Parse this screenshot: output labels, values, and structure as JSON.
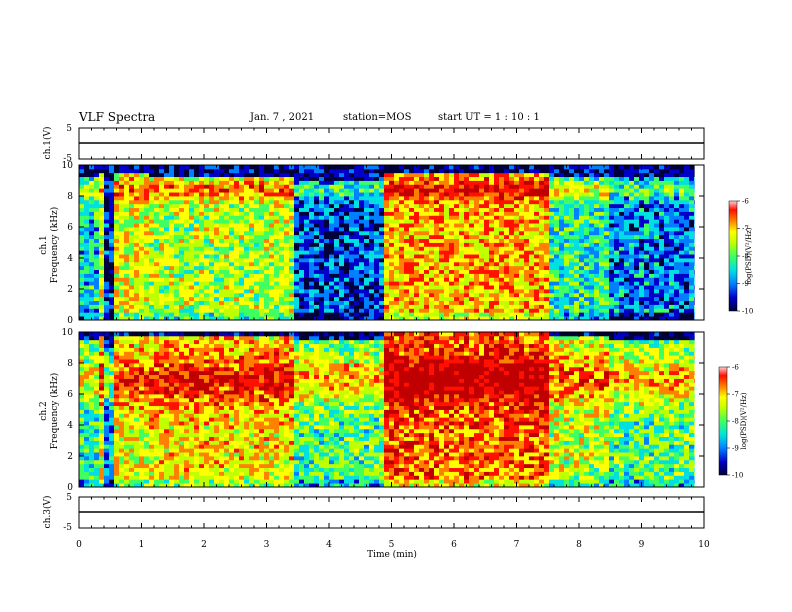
{
  "header": {
    "title": "VLF  Spectra",
    "date": "Jan. 7 , 2021",
    "station": "station=MOS",
    "start": "start  UT  =   1 : 10 : 1"
  },
  "colors": {
    "spectrum_scale": [
      "#00003a",
      "#0000c8",
      "#0080ff",
      "#00e0e0",
      "#40ff60",
      "#c0ff00",
      "#ffff00",
      "#ff8000",
      "#ff1000",
      "#c00000"
    ]
  },
  "chart_data": [
    {
      "type": "line",
      "name": "ch1-waveform",
      "ylabel": "ch.1(V)",
      "ylim": [
        -5,
        5
      ],
      "yticks": [
        "5",
        "-5"
      ],
      "x": [
        0,
        10
      ],
      "y": [
        0,
        0
      ]
    },
    {
      "type": "heatmap",
      "name": "ch1-spectrogram",
      "ylabel": "ch.1\nFrequency (kHz)",
      "xlim": [
        0,
        10
      ],
      "ylim": [
        0,
        10
      ],
      "yticks": [
        "0",
        "2",
        "4",
        "6",
        "8",
        "10"
      ],
      "colorbar": {
        "label": "log(PSD)(V²/Hz)",
        "ticks": [
          "-6",
          "-7",
          "-8",
          "-9",
          "-10"
        ],
        "range": [
          -10,
          -6
        ]
      },
      "segments": [
        {
          "x0": 0.0,
          "x1": 0.3,
          "level": -8.6,
          "top_khz": 9.2
        },
        {
          "x0": 0.3,
          "x1": 0.4,
          "level": -7.8,
          "top_khz": 9.5
        },
        {
          "x0": 0.4,
          "x1": 0.6,
          "level": -9.4,
          "top_khz": 7.0
        },
        {
          "x0": 0.6,
          "x1": 1.15,
          "level": -7.6,
          "top_khz": 9.4
        },
        {
          "x0": 1.15,
          "x1": 3.45,
          "level": -7.8,
          "top_khz": 9.3
        },
        {
          "x0": 3.45,
          "x1": 4.85,
          "level": -9.2,
          "top_khz": 9.0
        },
        {
          "x0": 4.85,
          "x1": 7.5,
          "level": -7.2,
          "top_khz": 9.5
        },
        {
          "x0": 7.5,
          "x1": 8.5,
          "level": -8.4,
          "top_khz": 9.3
        },
        {
          "x0": 8.5,
          "x1": 9.85,
          "level": -9.0,
          "top_khz": 9.2
        }
      ]
    },
    {
      "type": "heatmap",
      "name": "ch2-spectrogram",
      "ylabel": "ch.2\nFrequency (kHz)",
      "xlim": [
        0,
        10
      ],
      "ylim": [
        0,
        10
      ],
      "yticks": [
        "0",
        "2",
        "4",
        "6",
        "8",
        "10"
      ],
      "colorbar": {
        "label": "log(PSD)(V²/Hz)",
        "ticks": [
          "-6",
          "-7",
          "-8",
          "-9",
          "-10"
        ],
        "range": [
          -10,
          -6
        ]
      },
      "segments": [
        {
          "x0": 0.0,
          "x1": 0.3,
          "level": -8.4,
          "top_khz": 9.5
        },
        {
          "x0": 0.3,
          "x1": 0.4,
          "level": -7.6,
          "top_khz": 9.8
        },
        {
          "x0": 0.4,
          "x1": 0.6,
          "level": -9.0,
          "top_khz": 9.0
        },
        {
          "x0": 0.6,
          "x1": 1.15,
          "level": -7.6,
          "top_khz": 9.8
        },
        {
          "x0": 1.15,
          "x1": 3.45,
          "level": -7.4,
          "top_khz": 9.8
        },
        {
          "x0": 3.45,
          "x1": 4.85,
          "level": -8.2,
          "top_khz": 9.6
        },
        {
          "x0": 4.85,
          "x1": 7.5,
          "level": -6.9,
          "top_khz": 9.9
        },
        {
          "x0": 7.5,
          "x1": 8.5,
          "level": -7.8,
          "top_khz": 9.7
        },
        {
          "x0": 8.5,
          "x1": 9.85,
          "level": -8.2,
          "top_khz": 9.6
        }
      ]
    },
    {
      "type": "line",
      "name": "ch3-waveform",
      "ylabel": "ch.3(V)",
      "ylim": [
        -5,
        5
      ],
      "yticks": [
        "5",
        "-5"
      ],
      "x": [
        0,
        10
      ],
      "y": [
        0,
        0
      ]
    }
  ],
  "xaxis": {
    "label": "Time  (min)",
    "ticks": [
      "0",
      "1",
      "2",
      "3",
      "4",
      "5",
      "6",
      "7",
      "8",
      "9",
      "10"
    ]
  }
}
